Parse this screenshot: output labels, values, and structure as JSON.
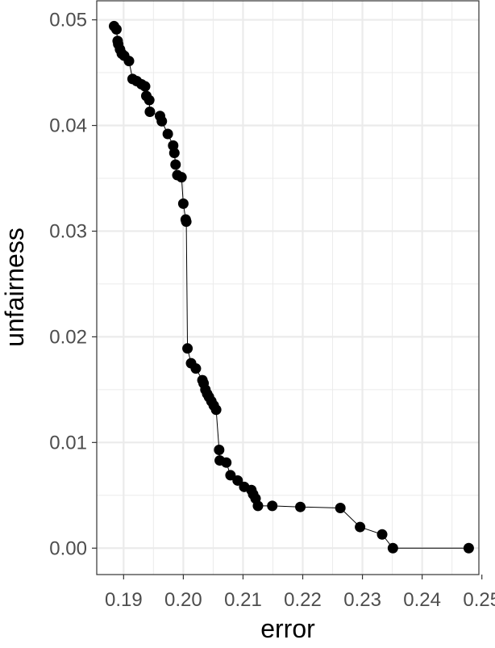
{
  "chart_data": {
    "type": "line",
    "title": "",
    "xlabel": "error",
    "ylabel": "unfairness",
    "xlim": [
      0.1855,
      0.2495
    ],
    "ylim": [
      -0.0025,
      0.0518
    ],
    "x_ticks": [
      0.19,
      0.2,
      0.21,
      0.22,
      0.23,
      0.24,
      0.25
    ],
    "x_tick_labels": [
      "0.19",
      "0.20",
      "0.21",
      "0.22",
      "0.23",
      "0.24",
      "0.25"
    ],
    "y_ticks": [
      0.0,
      0.01,
      0.02,
      0.03,
      0.04,
      0.05
    ],
    "y_tick_labels": [
      "0.00",
      "0.01",
      "0.02",
      "0.03",
      "0.04",
      "0.05"
    ],
    "grid": true,
    "legend": "none",
    "series": [
      {
        "line": true,
        "markers": true,
        "color": "#000000",
        "x": [
          0.1884,
          0.1888,
          0.189,
          0.1891,
          0.1894,
          0.1897,
          0.1901,
          0.1909,
          0.1915,
          0.1922,
          0.193,
          0.1936,
          0.1938,
          0.1943,
          0.1944,
          0.1961,
          0.1964,
          0.1974,
          0.1983,
          0.1985,
          0.1987,
          0.199,
          0.1997,
          0.2,
          0.2004,
          0.2005,
          0.2007,
          0.2013,
          0.2021,
          0.2032,
          0.2034,
          0.2037,
          0.204,
          0.2043,
          0.2047,
          0.2051,
          0.2055,
          0.206,
          0.2061,
          0.2072,
          0.2079,
          0.2091,
          0.2102,
          0.2114,
          0.2117,
          0.2121,
          0.2125,
          0.2149,
          0.2196,
          0.2263,
          0.2296,
          0.2333,
          0.2351,
          0.2478
        ],
        "y": [
          0.0494,
          0.0491,
          0.048,
          0.0477,
          0.0472,
          0.0468,
          0.0466,
          0.0461,
          0.0444,
          0.0442,
          0.0439,
          0.0437,
          0.0428,
          0.0424,
          0.0413,
          0.0409,
          0.0404,
          0.0392,
          0.0381,
          0.0374,
          0.0363,
          0.0353,
          0.0351,
          0.0326,
          0.0311,
          0.0309,
          0.0189,
          0.0175,
          0.017,
          0.0159,
          0.0156,
          0.015,
          0.0146,
          0.0143,
          0.0139,
          0.0135,
          0.0131,
          0.0093,
          0.0083,
          0.0081,
          0.0069,
          0.0064,
          0.0058,
          0.0055,
          0.0051,
          0.0047,
          0.004,
          0.004,
          0.0039,
          0.0038,
          0.002,
          0.0013,
          0.0,
          0.0
        ]
      }
    ]
  }
}
